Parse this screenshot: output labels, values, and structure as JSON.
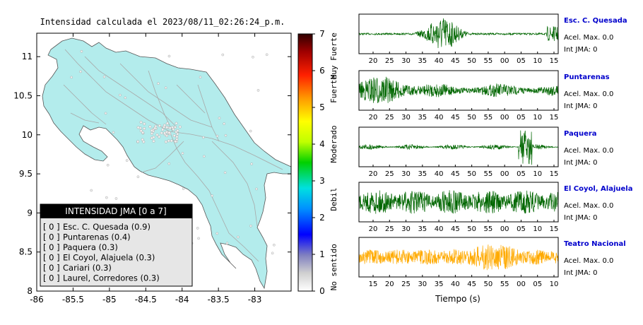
{
  "map": {
    "title": "Intensidad calculada el 2023/08/11_02:26:24_p.m.",
    "x_ticks": [
      "-86",
      "-85.5",
      "-85",
      "-84.5",
      "-84",
      "-83.5",
      "-83"
    ],
    "y_ticks": [
      "11",
      "10.5",
      "10",
      "9.5",
      "9",
      "8.5",
      "8"
    ],
    "xlim": [
      -86,
      -82.5
    ],
    "ylim": [
      8,
      11.3
    ],
    "land_color": "#b3ecec",
    "ocean_color": "#ffffff"
  },
  "legend": {
    "title": "INTENSIDAD JMA [0 a 7]",
    "items": [
      {
        "int": "[ 0 ]",
        "label": "Esc. C. Quesada (0.9)"
      },
      {
        "int": "[ 0 ]",
        "label": "Puntarenas (0.4)"
      },
      {
        "int": "[ 0 ]",
        "label": "Paquera (0.3)"
      },
      {
        "int": "[ 0 ]",
        "label": "El Coyol, Alajuela (0.3)"
      },
      {
        "int": "[ 0 ]",
        "label": "Cariari (0.3)"
      },
      {
        "int": "[ 0 ]",
        "label": "Laurel, Corredores (0.3)"
      }
    ]
  },
  "colorbar": {
    "ticks": [
      "0",
      "1",
      "2",
      "3",
      "4",
      "5",
      "6",
      "7"
    ],
    "labels": [
      "No sentido",
      "Debil",
      "Moderado",
      "Fuerte",
      "Muy Fuerte"
    ],
    "range": [
      0,
      7
    ]
  },
  "stations": [
    {
      "name": "Esc. C. Quesada",
      "accel": "Acel. Max. 0.0",
      "int": "Int JMA: 0",
      "color": "#006600",
      "ticks": [
        "20",
        "25",
        "30",
        "35",
        "40",
        "45",
        "50",
        "55",
        "00",
        "05",
        "10",
        "15"
      ]
    },
    {
      "name": "Puntarenas",
      "accel": "Acel. Max. 0.0",
      "int": "Int JMA: 0",
      "color": "#006600",
      "ticks": [
        "20",
        "25",
        "30",
        "35",
        "40",
        "45",
        "50",
        "55",
        "00",
        "05",
        "10",
        "15"
      ]
    },
    {
      "name": "Paquera",
      "accel": "Acel. Max. 0.0",
      "int": "Int JMA: 0",
      "color": "#006600",
      "ticks": [
        "20",
        "25",
        "30",
        "35",
        "40",
        "45",
        "50",
        "55",
        "00",
        "05",
        "10",
        "15"
      ]
    },
    {
      "name": "El Coyol, Alajuela",
      "accel": "Acel. Max. 0.0",
      "int": "Int JMA: 0",
      "color": "#006600",
      "ticks": [
        "20",
        "25",
        "30",
        "35",
        "40",
        "45",
        "50",
        "55",
        "00",
        "05",
        "10",
        "15"
      ]
    },
    {
      "name": "Teatro Nacional",
      "accel": "Acel. Max. 0.0",
      "int": "Int JMA: 0",
      "color": "#ffaa00",
      "ticks": [
        "15",
        "20",
        "25",
        "30",
        "35",
        "40",
        "45",
        "50",
        "55",
        "00",
        "05",
        "10"
      ]
    }
  ],
  "xlabel": "Tiempo (s)",
  "chart_data": [
    {
      "type": "heatmap",
      "title": "Intensidad calculada el 2023/08/11_02:26:24_p.m.",
      "xlim": [
        -86,
        -82.5
      ],
      "ylim": [
        8,
        11.3
      ],
      "colorbar_range": [
        0,
        7
      ]
    },
    {
      "type": "line",
      "xlabel": "Tiempo (s)",
      "series": [
        {
          "name": "Esc. C. Quesada"
        },
        {
          "name": "Puntarenas"
        },
        {
          "name": "Paquera"
        },
        {
          "name": "El Coyol, Alajuela"
        },
        {
          "name": "Teatro Nacional"
        }
      ]
    }
  ]
}
